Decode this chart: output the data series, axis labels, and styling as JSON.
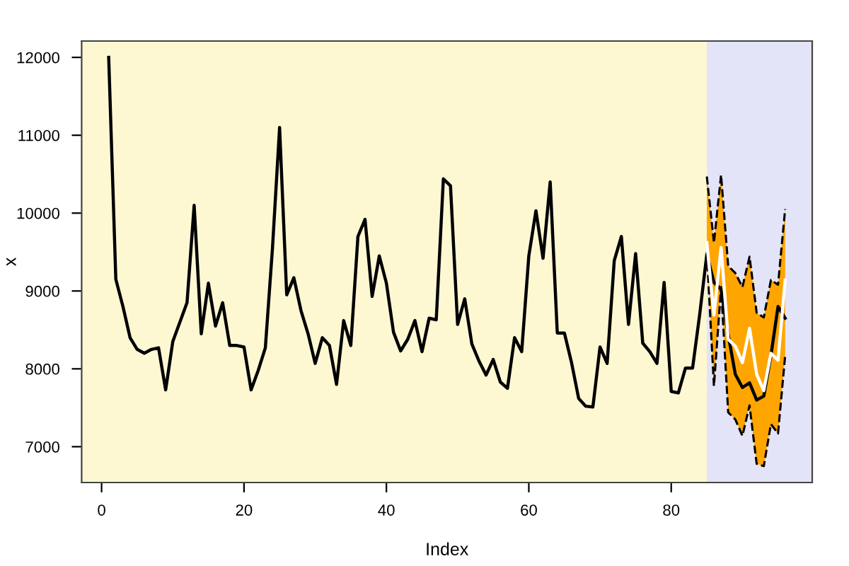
{
  "chart_data": {
    "type": "line",
    "xlabel": "Index",
    "ylabel": "x",
    "xlim": [
      -2.8,
      99.8
    ],
    "ylim": [
      6540,
      12210
    ],
    "xticks": [
      0,
      20,
      40,
      60,
      80
    ],
    "yticks": [
      7000,
      8000,
      9000,
      10000,
      11000,
      12000
    ],
    "grid": false,
    "legend": false,
    "marker": "none",
    "line_style": "solid",
    "bands": [
      {
        "axis": "x",
        "from": -2.8,
        "to": 85,
        "label": null,
        "color": "#fdf8d2"
      },
      {
        "axis": "x",
        "from": 85,
        "to": 99.8,
        "label": null,
        "color": "#e4e4f8"
      }
    ],
    "series": [
      {
        "color": "#000000",
        "x": [
          1,
          2,
          3,
          4,
          5,
          6,
          7,
          8,
          9,
          10,
          11,
          12,
          13,
          14,
          15,
          16,
          17,
          18,
          19,
          20,
          21,
          22,
          23,
          24,
          25,
          26,
          27,
          28,
          29,
          30,
          31,
          32,
          33,
          34,
          35,
          36,
          37,
          38,
          39,
          40,
          41,
          42,
          43,
          44,
          45,
          46,
          47,
          48,
          49,
          50,
          51,
          52,
          53,
          54,
          55,
          56,
          57,
          58,
          59,
          60,
          61,
          62,
          63,
          64,
          65,
          66,
          67,
          68,
          69,
          70,
          71,
          72,
          73,
          74,
          75,
          76,
          77,
          78,
          79,
          80,
          81,
          82,
          83,
          84,
          85,
          86,
          87,
          88,
          89,
          90,
          91,
          92,
          93,
          94,
          95,
          96
        ],
        "values": [
          12000,
          9150,
          8800,
          8400,
          8250,
          8200,
          8250,
          8270,
          7730,
          8350,
          8600,
          8850,
          10100,
          8450,
          9100,
          8550,
          8850,
          8300,
          8300,
          8280,
          7730,
          7980,
          8270,
          9550,
          11100,
          8950,
          9170,
          8750,
          8450,
          8070,
          8400,
          8300,
          7800,
          8620,
          8300,
          9700,
          9920,
          8930,
          9450,
          9100,
          8470,
          8230,
          8380,
          8620,
          8220,
          8650,
          8630,
          10440,
          10350,
          8570,
          8900,
          8320,
          8100,
          7920,
          8120,
          7830,
          7750,
          8400,
          8220,
          9450,
          10030,
          9420,
          10400,
          8460,
          8460,
          8080,
          7620,
          7520,
          7510,
          8280,
          8070,
          9390,
          9700,
          8570,
          9480,
          8330,
          8220,
          8070,
          9110,
          7710,
          7690,
          8010,
          8010,
          8700,
          9470,
          9110,
          9020,
          8440,
          7930,
          7760,
          7820,
          7600,
          7650,
          8170,
          8800,
          8650
        ]
      },
      {
        "color": "#ffffff",
        "x": [
          85,
          86,
          87,
          88,
          89,
          90,
          91,
          92,
          93,
          94,
          95,
          96
        ],
        "values": [
          9620,
          8690,
          9560,
          8380,
          8290,
          8080,
          8520,
          7930,
          7720,
          8200,
          8110,
          9140
        ],
        "lower": [
          9500,
          7780,
          9050,
          7440,
          7350,
          7140,
          7530,
          6780,
          6750,
          7290,
          7170,
          8170
        ],
        "upper": [
          10470,
          9620,
          10490,
          9320,
          9230,
          9050,
          9440,
          8720,
          8660,
          9140,
          9080,
          10050
        ]
      },
      {
        "color": "#000000",
        "line_style": "dashed",
        "x": [
          85,
          86,
          87,
          88,
          89,
          90,
          91,
          92,
          93,
          94,
          95,
          96
        ],
        "values": [
          9500,
          7780,
          9050,
          7440,
          7350,
          7140,
          7530,
          6780,
          6750,
          7290,
          7170,
          8170
        ]
      },
      {
        "color": "#000000",
        "line_style": "dashed",
        "x": [
          85,
          86,
          87,
          88,
          89,
          90,
          91,
          92,
          93,
          94,
          95,
          96
        ],
        "values": [
          10470,
          9620,
          10490,
          9320,
          9230,
          9050,
          9440,
          8720,
          8660,
          9140,
          9080,
          10050
        ]
      }
    ]
  }
}
